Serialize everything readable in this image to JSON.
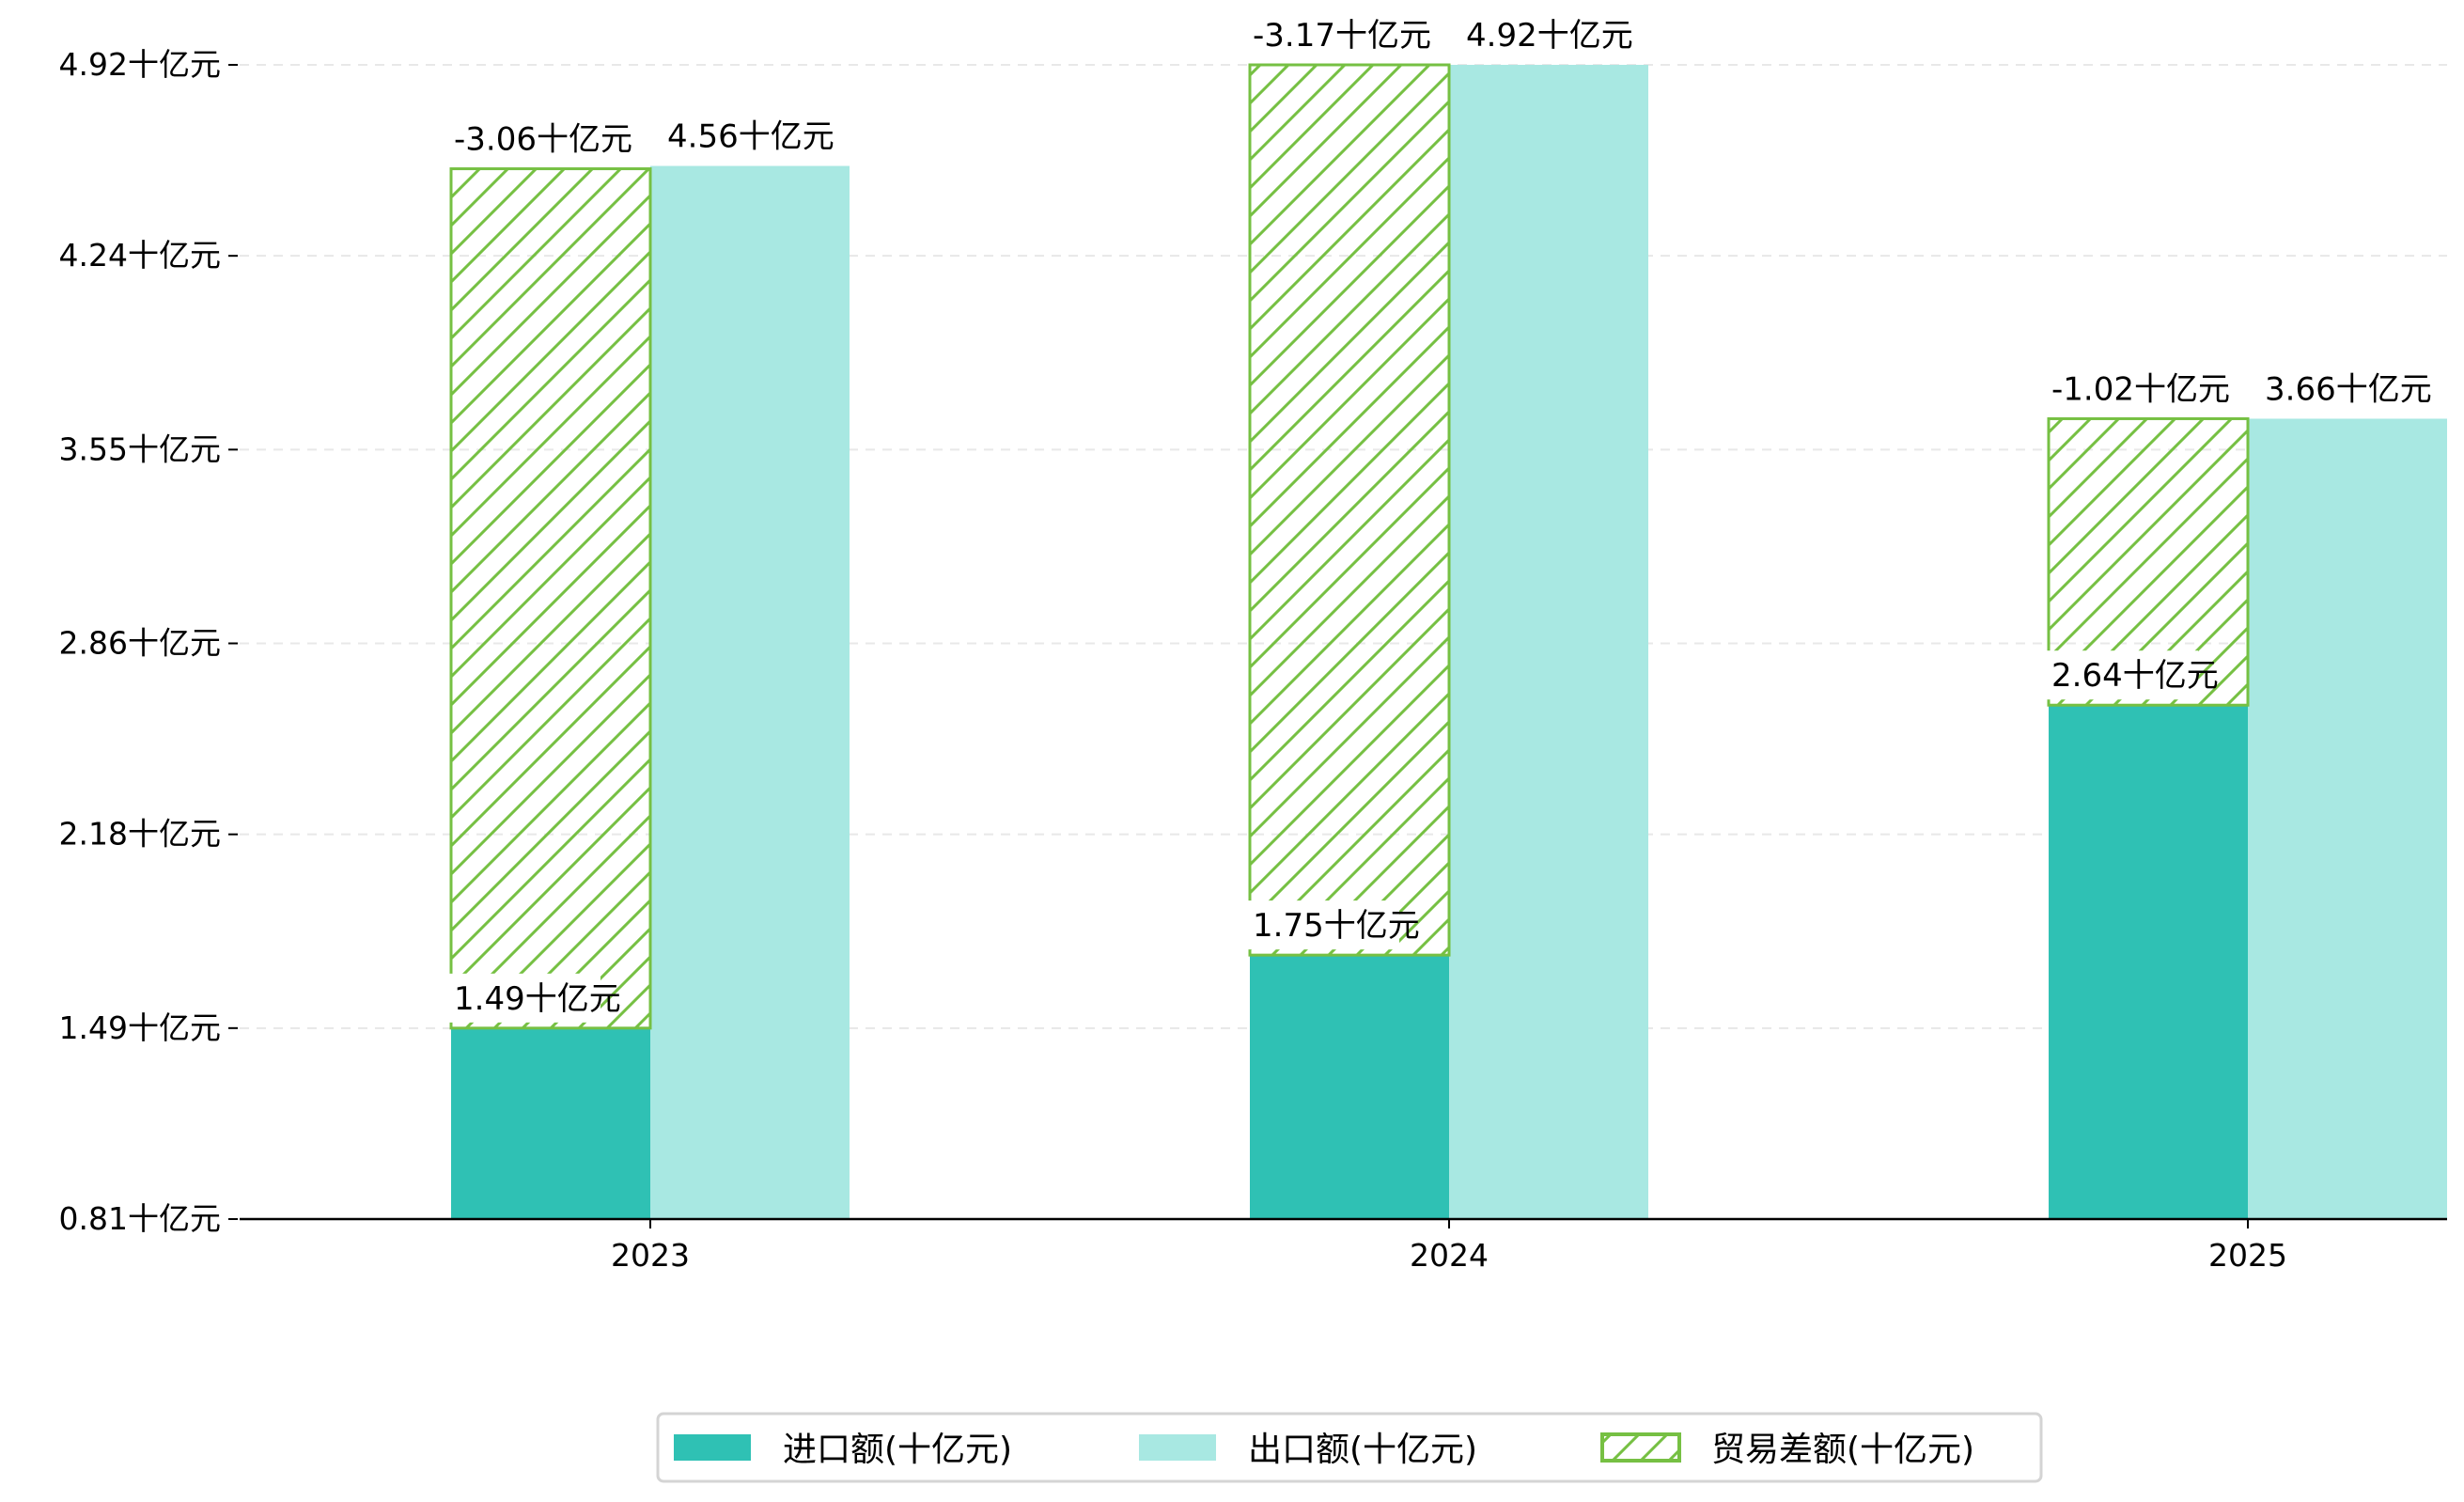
{
  "chart_data": {
    "type": "bar",
    "title": "",
    "xlabel": "",
    "ylabel": "",
    "categories": [
      "2023",
      "2024",
      "2025"
    ],
    "ylim": [
      0.81,
      4.92
    ],
    "yticks": [
      0.81,
      1.49,
      2.18,
      2.86,
      3.55,
      4.24,
      4.92
    ],
    "ytick_labels": [
      "0.81十亿元",
      "1.49十亿元",
      "2.18十亿元",
      "2.86十亿元",
      "3.55十亿元",
      "4.24十亿元",
      "4.92十亿元"
    ],
    "grid": "horizontal dashed",
    "legend_position": "bottom-center",
    "series": [
      {
        "name": "进口额(十亿元)",
        "values": [
          1.49,
          1.75,
          2.64
        ],
        "labels": [
          "1.49十亿元",
          "1.75十亿元",
          "2.64十亿元"
        ],
        "color": "#2fc1b4"
      },
      {
        "name": "出口额(十亿元)",
        "values": [
          4.56,
          4.92,
          3.66
        ],
        "labels": [
          "4.56十亿元",
          "4.92十亿元",
          "3.66十亿元"
        ],
        "color": "#a8e8e2"
      },
      {
        "name": "贸易差额(十亿元)",
        "values": [
          -3.06,
          -3.17,
          -1.02
        ],
        "labels": [
          "-3.06十亿元",
          "-3.17十亿元",
          "-1.02十亿元"
        ],
        "color": "#76c043",
        "pattern": "hatch",
        "stacked_on": "进口额(十亿元)"
      }
    ]
  }
}
